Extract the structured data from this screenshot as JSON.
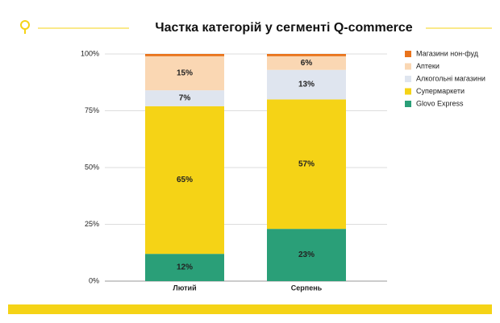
{
  "chart_data": {
    "type": "stacked-bar",
    "title": "Частка категорій у сегменті Q-commerce",
    "categories": [
      "Лютий",
      "Серпень"
    ],
    "series": [
      {
        "name": "Glovo Express",
        "color": "#2a9f78",
        "values": [
          12,
          23
        ],
        "value_labels": [
          "12%",
          "23%"
        ]
      },
      {
        "name": "Супермаркети",
        "color": "#f5d316",
        "values": [
          65,
          57
        ],
        "value_labels": [
          "65%",
          "57%"
        ]
      },
      {
        "name": "Алкогольні магазини",
        "color": "#dfe5ef",
        "values": [
          7,
          13
        ],
        "value_labels": [
          "7%",
          "13%"
        ]
      },
      {
        "name": "Аптеки",
        "color": "#fad7b3",
        "values": [
          15,
          6
        ],
        "value_labels": [
          "15%",
          "6%"
        ]
      },
      {
        "name": "Магазини нон-фуд",
        "color": "#e9731b",
        "values": [
          1,
          1
        ]
      }
    ],
    "ylim": [
      0,
      100
    ],
    "yticks": [
      {
        "value": 0,
        "label": "0%"
      },
      {
        "value": 25,
        "label": "25%"
      },
      {
        "value": 50,
        "label": "50%"
      },
      {
        "value": 75,
        "label": "75%"
      },
      {
        "value": 100,
        "label": "100%"
      }
    ],
    "grid": true,
    "legend": "right"
  }
}
